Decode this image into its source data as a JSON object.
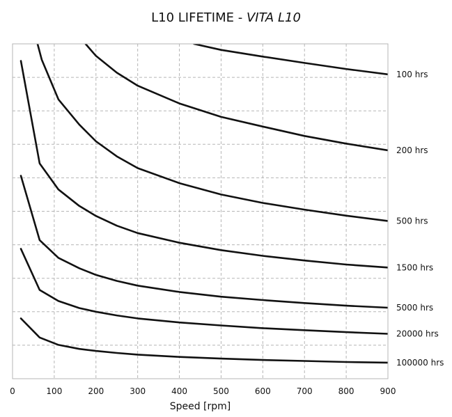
{
  "chart_data": {
    "type": "line",
    "title": {
      "prefix": "L10 LIFETIME - ",
      "italic": "VITA L10"
    },
    "xlabel": "Speed [rpm]",
    "ylabel": "",
    "xlim": [
      0,
      900
    ],
    "x_ticks": [
      0,
      100,
      200,
      300,
      400,
      500,
      600,
      700,
      800,
      900
    ],
    "x_tick_labels": [
      "0",
      "100",
      "200",
      "300",
      "400",
      "500",
      "600",
      "700",
      "800",
      "900"
    ],
    "y_scale": "relative",
    "ylim": [
      0,
      100
    ],
    "y_gridlines": [
      10,
      20,
      30,
      40,
      50,
      60,
      70,
      80,
      90
    ],
    "grid": true,
    "line_color": "#111111",
    "grid_color": "#b5b5b5",
    "series": [
      {
        "name": "100 hrs",
        "points": [
          [
            435,
            100
          ],
          [
            500,
            98.2
          ],
          [
            600,
            96.2
          ],
          [
            700,
            94.3
          ],
          [
            800,
            92.5
          ],
          [
            900,
            90.9
          ]
        ]
      },
      {
        "name": "200 hrs",
        "points": [
          [
            175,
            100
          ],
          [
            200,
            96.4
          ],
          [
            250,
            91.4
          ],
          [
            300,
            87.5
          ],
          [
            400,
            82.2
          ],
          [
            500,
            78.2
          ],
          [
            600,
            75.3
          ],
          [
            700,
            72.5
          ],
          [
            800,
            70.2
          ],
          [
            900,
            68.2
          ]
        ]
      },
      {
        "name": "500 hrs",
        "points": [
          [
            60,
            100
          ],
          [
            70,
            95.3
          ],
          [
            110,
            83.4
          ],
          [
            160,
            75.9
          ],
          [
            200,
            70.9
          ],
          [
            250,
            66.4
          ],
          [
            300,
            62.9
          ],
          [
            400,
            58.4
          ],
          [
            500,
            55.0
          ],
          [
            600,
            52.5
          ],
          [
            700,
            50.5
          ],
          [
            800,
            48.7
          ],
          [
            900,
            47.1
          ]
        ]
      },
      {
        "name": "1500 hrs",
        "points": [
          [
            20,
            94.9
          ],
          [
            65,
            64.3
          ],
          [
            110,
            56.5
          ],
          [
            160,
            51.6
          ],
          [
            200,
            48.6
          ],
          [
            250,
            45.7
          ],
          [
            300,
            43.5
          ],
          [
            400,
            40.6
          ],
          [
            500,
            38.4
          ],
          [
            600,
            36.7
          ],
          [
            700,
            35.3
          ],
          [
            800,
            34.1
          ],
          [
            900,
            33.2
          ]
        ]
      },
      {
        "name": "5000 hrs",
        "points": [
          [
            20,
            60.6
          ],
          [
            65,
            41.4
          ],
          [
            110,
            36.1
          ],
          [
            160,
            33.0
          ],
          [
            200,
            31.0
          ],
          [
            250,
            29.2
          ],
          [
            300,
            27.8
          ],
          [
            400,
            25.9
          ],
          [
            500,
            24.5
          ],
          [
            600,
            23.5
          ],
          [
            700,
            22.6
          ],
          [
            800,
            21.8
          ],
          [
            900,
            21.2
          ]
        ]
      },
      {
        "name": "20000 hrs",
        "points": [
          [
            20,
            38.8
          ],
          [
            65,
            26.5
          ],
          [
            110,
            23.2
          ],
          [
            160,
            21.1
          ],
          [
            200,
            20.0
          ],
          [
            250,
            18.9
          ],
          [
            300,
            18.0
          ],
          [
            400,
            16.8
          ],
          [
            500,
            15.9
          ],
          [
            600,
            15.1
          ],
          [
            700,
            14.5
          ],
          [
            800,
            13.9
          ],
          [
            900,
            13.4
          ]
        ]
      },
      {
        "name": "100000 hrs",
        "points": [
          [
            20,
            18.0
          ],
          [
            65,
            12.3
          ],
          [
            110,
            10.1
          ],
          [
            160,
            8.9
          ],
          [
            200,
            8.3
          ],
          [
            250,
            7.7
          ],
          [
            300,
            7.2
          ],
          [
            400,
            6.5
          ],
          [
            500,
            6.0
          ],
          [
            600,
            5.6
          ],
          [
            700,
            5.3
          ],
          [
            800,
            5.0
          ],
          [
            900,
            4.8
          ]
        ]
      }
    ]
  }
}
